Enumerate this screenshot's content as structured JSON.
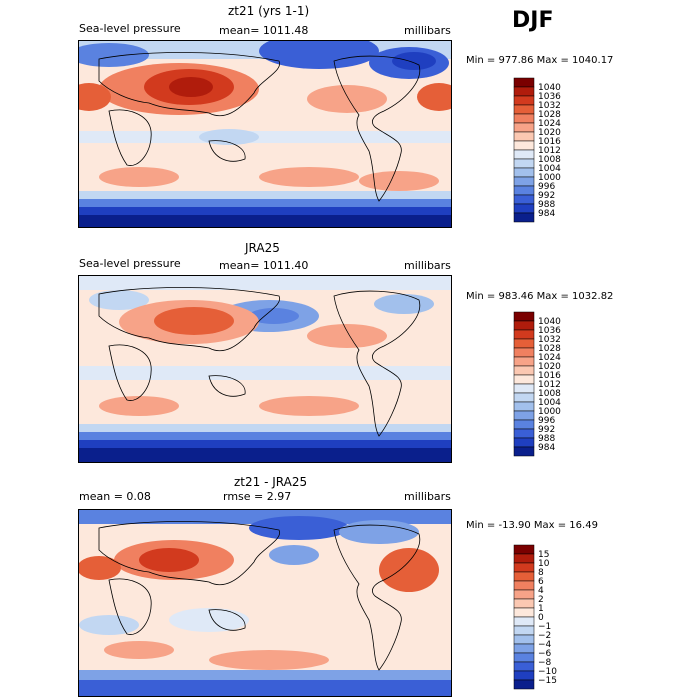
{
  "season": "DJF",
  "panels": [
    {
      "title": "zt21 (yrs 1-1)",
      "field": "Sea-level pressure",
      "stat": "mean= 1011.48",
      "units": "millibars",
      "minmax": "Min = 977.86 Max = 1040.17"
    },
    {
      "title": "JRA25",
      "field": "Sea-level pressure",
      "stat": "mean= 1011.40",
      "units": "millibars",
      "minmax": "Min = 983.46 Max = 1032.82"
    },
    {
      "title": "zt21 - JRA25",
      "mean": "mean =    0.08",
      "rmse": "rmse =    2.97",
      "units": "millibars",
      "minmax": "Min = -13.90 Max =  16.49"
    }
  ],
  "chart_data": [
    {
      "type": "heatmap",
      "title": "zt21 (yrs 1-1)",
      "variable": "Sea-level pressure",
      "units": "millibars",
      "mean": 1011.48,
      "min": 977.86,
      "max": 1040.17,
      "colorbar": {
        "levels": [
          "1040",
          "1036",
          "1032",
          "1028",
          "1024",
          "1020",
          "1016",
          "1012",
          "1008",
          "1004",
          "1000",
          "996",
          "992",
          "988",
          "984"
        ],
        "colors": [
          "#7a0000",
          "#b01c0c",
          "#d23a1e",
          "#e55f38",
          "#f08060",
          "#f7a388",
          "#fbc8b2",
          "#fde8dc",
          "#dfe9f7",
          "#c2d7f2",
          "#a2c0ec",
          "#7ea2e6",
          "#5a82e0",
          "#3a5fd6",
          "#1f3fc0",
          "#0a1f8c"
        ]
      }
    },
    {
      "type": "heatmap",
      "title": "JRA25",
      "variable": "Sea-level pressure",
      "units": "millibars",
      "mean": 1011.4,
      "min": 983.46,
      "max": 1032.82,
      "colorbar": {
        "levels": [
          "1040",
          "1036",
          "1032",
          "1028",
          "1024",
          "1020",
          "1016",
          "1012",
          "1008",
          "1004",
          "1000",
          "996",
          "992",
          "988",
          "984"
        ],
        "colors": [
          "#7a0000",
          "#b01c0c",
          "#d23a1e",
          "#e55f38",
          "#f08060",
          "#f7a388",
          "#fbc8b2",
          "#fde8dc",
          "#dfe9f7",
          "#c2d7f2",
          "#a2c0ec",
          "#7ea2e6",
          "#5a82e0",
          "#3a5fd6",
          "#1f3fc0",
          "#0a1f8c"
        ]
      }
    },
    {
      "type": "heatmap",
      "title": "zt21 - JRA25",
      "units": "millibars",
      "mean": 0.08,
      "rmse": 2.97,
      "min": -13.9,
      "max": 16.49,
      "colorbar": {
        "levels": [
          "15",
          "10",
          "8",
          "6",
          "4",
          "2",
          "1",
          "0",
          "−1",
          "−2",
          "−4",
          "−6",
          "−8",
          "−10",
          "−15"
        ],
        "colors": [
          "#7a0000",
          "#b01c0c",
          "#d23a1e",
          "#e55f38",
          "#f08060",
          "#f7a388",
          "#fbc8b2",
          "#fde8dc",
          "#dfe9f7",
          "#c2d7f2",
          "#a2c0ec",
          "#7ea2e6",
          "#5a82e0",
          "#3a5fd6",
          "#1f3fc0",
          "#0a1f8c"
        ]
      }
    }
  ]
}
